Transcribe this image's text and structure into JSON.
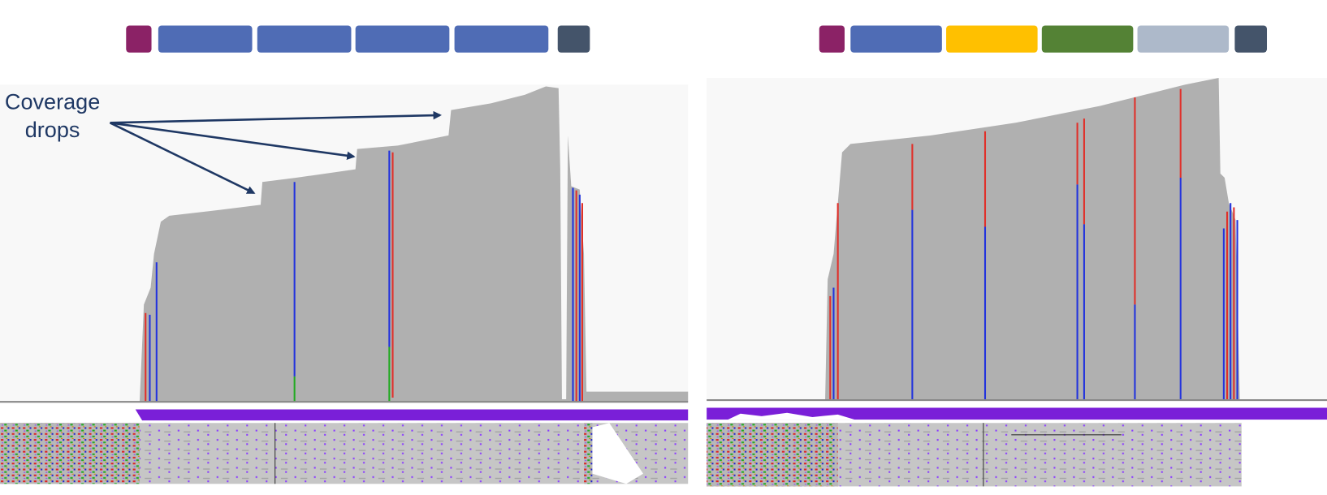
{
  "annotation": {
    "lines": [
      "Coverage",
      "drops"
    ]
  }
}
